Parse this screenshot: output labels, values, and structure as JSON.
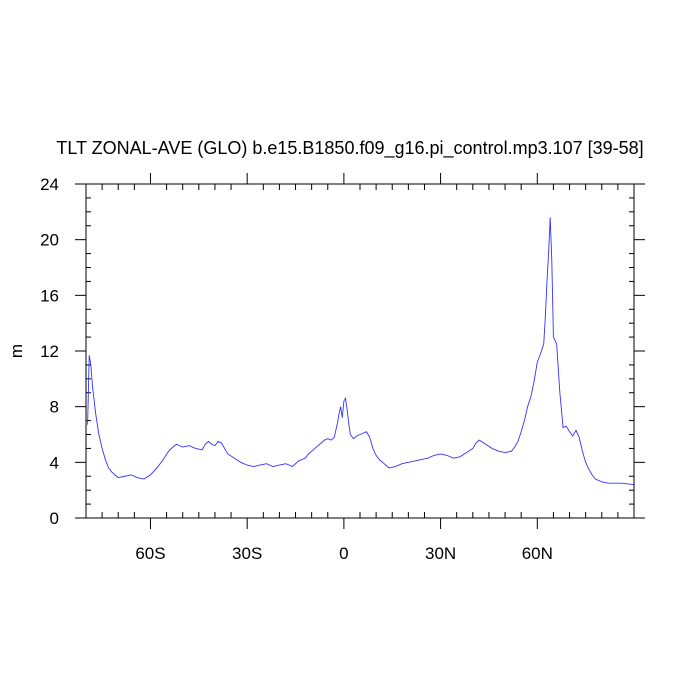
{
  "chart_data": {
    "type": "line",
    "title": "TLT ZONAL-AVE (GLO) b.e15.B1850.f09_g16.pi_control.mp3.107 [39-58]",
    "xlabel": "",
    "ylabel": "m",
    "xlim": [
      -80,
      90
    ],
    "ylim": [
      0,
      24
    ],
    "grid": false,
    "legend": "none",
    "x_ticks": [
      -60,
      -30,
      0,
      30,
      60
    ],
    "x_tick_labels": [
      "60S",
      "30S",
      "0",
      "30N",
      "60N"
    ],
    "y_ticks": [
      0,
      4,
      8,
      12,
      16,
      20,
      24
    ],
    "y_tick_labels": [
      "0",
      "4",
      "8",
      "12",
      "16",
      "20",
      "24"
    ],
    "line_color": "#3333ff",
    "series": [
      {
        "x": [
          -79.5,
          -79,
          -78.5,
          -78,
          -77,
          -76,
          -75,
          -74,
          -73,
          -72,
          -71,
          -70,
          -68,
          -66,
          -64,
          -62,
          -60,
          -58,
          -56,
          -55,
          -54,
          -53,
          -52,
          -51,
          -50,
          -48,
          -46,
          -44,
          -43,
          -42,
          -41,
          -40,
          -39,
          -38,
          -37,
          -36,
          -34,
          -32,
          -30,
          -28,
          -26,
          -24,
          -22,
          -20,
          -18,
          -16,
          -14,
          -12,
          -11,
          -10,
          -9,
          -8,
          -7,
          -6,
          -5,
          -4,
          -3,
          -2,
          -1.5,
          -1,
          -0.5,
          0,
          0.5,
          1,
          1.5,
          2,
          3,
          4,
          5,
          6,
          7,
          8,
          9,
          10,
          11,
          12,
          13,
          14,
          16,
          18,
          20,
          22,
          24,
          26,
          28,
          30,
          32,
          34,
          36,
          38,
          40,
          41,
          42,
          44,
          46,
          48,
          50,
          52,
          53,
          54,
          55,
          56,
          57,
          58,
          59,
          60,
          61,
          62,
          62.5,
          63,
          63.5,
          64,
          64.5,
          65,
          66,
          67,
          68,
          69,
          70,
          71,
          72,
          73,
          74,
          75,
          76,
          77,
          78,
          80,
          82,
          84,
          86,
          88,
          90
        ],
        "y": [
          6.7,
          11.7,
          11.0,
          9.5,
          7.5,
          6.0,
          5.0,
          4.2,
          3.6,
          3.3,
          3.1,
          2.9,
          3.0,
          3.1,
          2.9,
          2.8,
          3.1,
          3.6,
          4.2,
          4.6,
          4.9,
          5.1,
          5.3,
          5.2,
          5.1,
          5.2,
          5.0,
          4.9,
          5.3,
          5.5,
          5.3,
          5.2,
          5.5,
          5.4,
          5.0,
          4.6,
          4.3,
          4.0,
          3.8,
          3.7,
          3.8,
          3.9,
          3.7,
          3.8,
          3.9,
          3.7,
          4.1,
          4.3,
          4.6,
          4.8,
          5.0,
          5.2,
          5.4,
          5.6,
          5.7,
          5.6,
          5.8,
          6.8,
          7.5,
          8.0,
          7.2,
          8.4,
          8.6,
          7.8,
          6.8,
          6.0,
          5.7,
          5.9,
          6.0,
          6.1,
          6.2,
          5.8,
          5.0,
          4.5,
          4.2,
          4.0,
          3.8,
          3.6,
          3.7,
          3.9,
          4.0,
          4.1,
          4.2,
          4.3,
          4.5,
          4.6,
          4.5,
          4.3,
          4.4,
          4.7,
          5.0,
          5.4,
          5.6,
          5.3,
          5.0,
          4.8,
          4.7,
          4.8,
          5.1,
          5.5,
          6.2,
          7.0,
          8.0,
          8.7,
          9.8,
          11.2,
          11.8,
          12.5,
          14.5,
          17.0,
          19.0,
          21.6,
          18.5,
          13.0,
          12.5,
          9.0,
          6.5,
          6.6,
          6.2,
          5.9,
          6.3,
          5.8,
          4.8,
          4.0,
          3.5,
          3.1,
          2.8,
          2.6,
          2.5,
          2.5,
          2.5,
          2.45,
          2.4
        ]
      }
    ]
  }
}
